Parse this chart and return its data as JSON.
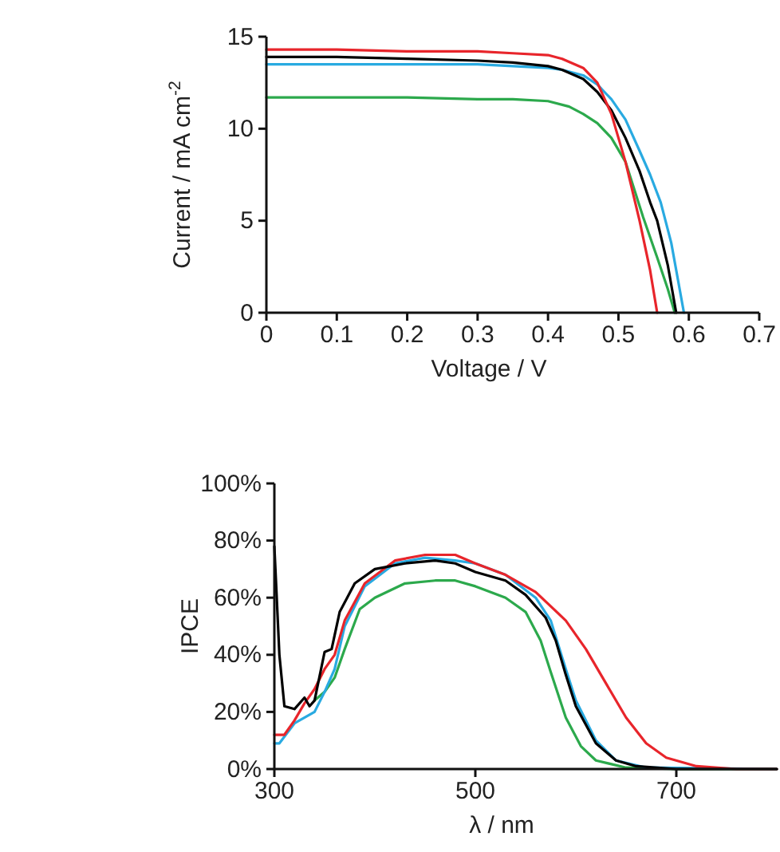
{
  "chart_data": [
    {
      "type": "line",
      "xlabel": "Voltage / V",
      "ylabel": "Current / mA cm$^{-2}$",
      "xlim": [
        0,
        0.7
      ],
      "ylim": [
        0,
        15
      ],
      "xticks": [
        0,
        0.1,
        0.2,
        0.3,
        0.4,
        0.5,
        0.6,
        0.7
      ],
      "yticks": [
        0,
        5,
        10,
        15
      ],
      "series": [
        {
          "color": "#2ca94c",
          "x": [
            0,
            0.1,
            0.2,
            0.3,
            0.35,
            0.4,
            0.43,
            0.45,
            0.47,
            0.49,
            0.51,
            0.52,
            0.535,
            0.555,
            0.57,
            0.58
          ],
          "values": [
            11.7,
            11.7,
            11.7,
            11.6,
            11.6,
            11.5,
            11.2,
            10.8,
            10.3,
            9.5,
            8.2,
            7.0,
            5.2,
            3.0,
            1.3,
            0
          ]
        },
        {
          "color": "#29aae1",
          "x": [
            0,
            0.1,
            0.2,
            0.3,
            0.35,
            0.4,
            0.42,
            0.45,
            0.47,
            0.49,
            0.51,
            0.53,
            0.545,
            0.56,
            0.575,
            0.593
          ],
          "values": [
            13.5,
            13.5,
            13.5,
            13.5,
            13.4,
            13.3,
            13.2,
            12.9,
            12.4,
            11.6,
            10.5,
            8.8,
            7.5,
            6.0,
            3.8,
            0
          ]
        },
        {
          "color": "#000000",
          "x": [
            0,
            0.1,
            0.2,
            0.3,
            0.35,
            0.4,
            0.42,
            0.45,
            0.47,
            0.49,
            0.51,
            0.53,
            0.545,
            0.555,
            0.57,
            0.582
          ],
          "values": [
            13.9,
            13.9,
            13.8,
            13.7,
            13.6,
            13.4,
            13.2,
            12.7,
            12.0,
            11.0,
            9.5,
            7.7,
            6.0,
            5.0,
            2.6,
            0
          ]
        },
        {
          "color": "#e8252b",
          "x": [
            0,
            0.1,
            0.2,
            0.3,
            0.35,
            0.4,
            0.42,
            0.45,
            0.47,
            0.49,
            0.5,
            0.51,
            0.53,
            0.545,
            0.555
          ],
          "values": [
            14.3,
            14.3,
            14.2,
            14.2,
            14.1,
            14.0,
            13.8,
            13.3,
            12.5,
            10.8,
            9.5,
            8.2,
            5.0,
            2.3,
            0
          ]
        }
      ]
    },
    {
      "type": "line",
      "xlabel": "λ / nm",
      "ylabel": "IPCE",
      "xlim": [
        300,
        800
      ],
      "ylim": [
        0,
        100
      ],
      "xticks": [
        300,
        500,
        700
      ],
      "yticks": [
        {
          "value": 0,
          "label": "0%"
        },
        {
          "value": 20,
          "label": "20%"
        },
        {
          "value": 40,
          "label": "40%"
        },
        {
          "value": 60,
          "label": "60%"
        },
        {
          "value": 80,
          "label": "80%"
        },
        {
          "value": 100,
          "label": "100%"
        }
      ],
      "series": [
        {
          "color": "#2ca94c",
          "x": [
            340,
            350,
            360,
            370,
            385,
            400,
            430,
            460,
            480,
            500,
            530,
            550,
            565,
            575,
            590,
            605,
            620,
            650,
            700,
            800
          ],
          "values": [
            24,
            27,
            32,
            42,
            56,
            60,
            65,
            66,
            66,
            64,
            60,
            55,
            45,
            34,
            18,
            8,
            3,
            0.5,
            0,
            0
          ]
        },
        {
          "color": "#29aae1",
          "x": [
            300,
            305,
            320,
            340,
            350,
            360,
            370,
            390,
            420,
            450,
            480,
            500,
            530,
            560,
            575,
            590,
            600,
            620,
            640,
            670,
            800
          ],
          "values": [
            9,
            9,
            16,
            20,
            27,
            35,
            50,
            64,
            72,
            74,
            73,
            72,
            68,
            60,
            52,
            35,
            24,
            10,
            3,
            0.5,
            0
          ]
        },
        {
          "color": "#e8252b",
          "x": [
            300,
            310,
            320,
            330,
            340,
            350,
            360,
            370,
            390,
            420,
            450,
            480,
            500,
            530,
            560,
            590,
            610,
            630,
            650,
            670,
            690,
            720,
            760,
            800
          ],
          "values": [
            12,
            12,
            17,
            23,
            28,
            35,
            40,
            52,
            65,
            73,
            75,
            75,
            72,
            68,
            62,
            52,
            42,
            30,
            18,
            9,
            4,
            1,
            0,
            0
          ]
        },
        {
          "color": "#000000",
          "x": [
            300,
            305,
            310,
            320,
            330,
            335,
            340,
            350,
            357,
            365,
            380,
            400,
            430,
            460,
            480,
            500,
            530,
            550,
            570,
            580,
            590,
            600,
            620,
            640,
            660,
            700,
            800
          ],
          "values": [
            78,
            40,
            22,
            21,
            25,
            22,
            24,
            41,
            42,
            55,
            65,
            70,
            72,
            73,
            72,
            69,
            66,
            61,
            53,
            45,
            33,
            22,
            9,
            3,
            1,
            0,
            0
          ]
        }
      ]
    }
  ]
}
